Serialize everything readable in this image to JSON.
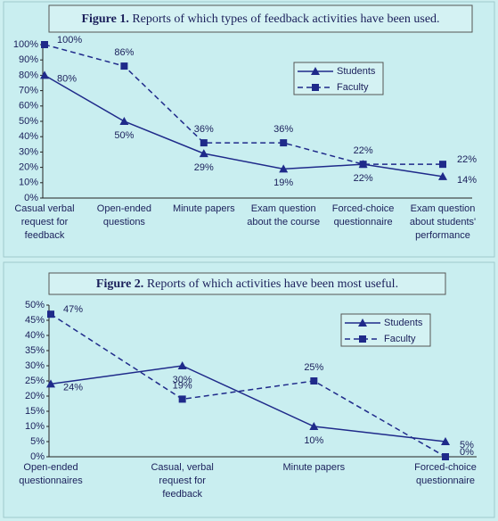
{
  "chart_data": [
    {
      "type": "line",
      "label": "Figure 1.",
      "title": "Reports of which types of feedback activities have been used.",
      "categories": [
        "Casual verbal request for feedback",
        "Open-ended questions",
        "Minute papers",
        "Exam question about the course",
        "Forced-choice questionnaire",
        "Exam question about students' performance"
      ],
      "series": [
        {
          "name": "Students",
          "color": "#1f2a8a",
          "marker": "triangle",
          "style": "solid",
          "values": [
            80,
            50,
            29,
            19,
            22,
            14
          ],
          "value_labels": [
            "80%",
            "50%",
            "29%",
            "19%",
            "22%",
            "14%"
          ]
        },
        {
          "name": "Faculty",
          "color": "#1f2a8a",
          "marker": "square",
          "style": "dashed",
          "values": [
            100,
            86,
            36,
            36,
            22,
            22
          ],
          "value_labels": [
            "100%",
            "86%",
            "36%",
            "36%",
            "22%",
            "22%"
          ]
        }
      ],
      "ylim": [
        0,
        100
      ],
      "yticks": [
        {
          "value": 0,
          "label": "0%"
        },
        {
          "value": 10,
          "label": "10%"
        },
        {
          "value": 20,
          "label": "20%"
        },
        {
          "value": 30,
          "label": "30%"
        },
        {
          "value": 40,
          "label": "40%"
        },
        {
          "value": 50,
          "label": "50%"
        },
        {
          "value": 60,
          "label": "60%"
        },
        {
          "value": 70,
          "label": "70%"
        },
        {
          "value": 80,
          "label": "80%"
        },
        {
          "value": 90,
          "label": "90%"
        },
        {
          "value": 100,
          "label": "100%"
        }
      ],
      "grid": false
    },
    {
      "type": "line",
      "label": "Figure 2.",
      "title": "Reports of which activities have been most useful.",
      "categories": [
        "Open-ended questionnaires",
        "Casual, verbal request for feedback",
        "Minute papers",
        "Forced-choice questionnaire"
      ],
      "series": [
        {
          "name": "Students",
          "color": "#1f2a8a",
          "marker": "triangle",
          "style": "solid",
          "values": [
            24,
            30,
            10,
            5
          ],
          "value_labels": [
            "24%",
            "30%",
            "10%",
            "5%"
          ]
        },
        {
          "name": "Faculty",
          "color": "#1f2a8a",
          "marker": "square",
          "style": "dashed",
          "values": [
            47,
            19,
            25,
            0
          ],
          "value_labels": [
            "47%",
            "19%",
            "25%",
            "0%"
          ]
        }
      ],
      "ylim": [
        0,
        50
      ],
      "yticks": [
        {
          "value": 0,
          "label": "0%"
        },
        {
          "value": 5,
          "label": "5%"
        },
        {
          "value": 10,
          "label": "10%"
        },
        {
          "value": 15,
          "label": "15%"
        },
        {
          "value": 20,
          "label": "20%"
        },
        {
          "value": 25,
          "label": "25%"
        },
        {
          "value": 30,
          "label": "30%"
        },
        {
          "value": 35,
          "label": "35%"
        },
        {
          "value": 40,
          "label": "40%"
        },
        {
          "value": 45,
          "label": "45%"
        },
        {
          "value": 50,
          "label": "50%"
        }
      ],
      "grid": false
    }
  ]
}
